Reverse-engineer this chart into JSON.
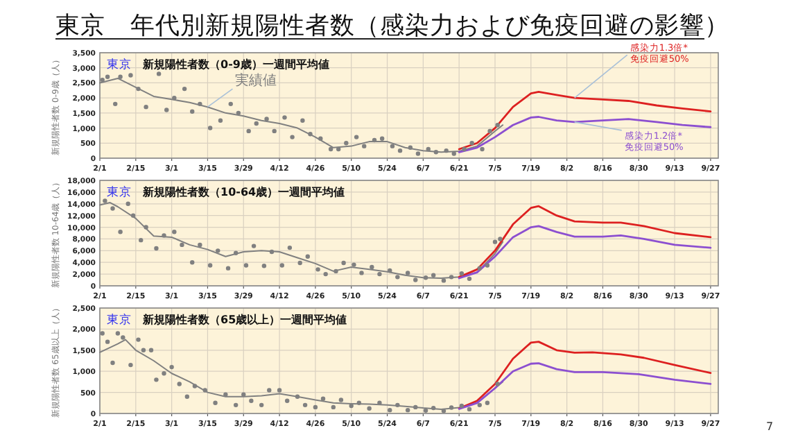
{
  "chart_data": [
    {
      "type": "line",
      "title": "東京　年代別新規陽性者数（感染力および免疫回避の影響）",
      "subtitle": "新規陽性者数（0-9歳）一週間平均値",
      "annotations": [
        "東京"
      ],
      "ylabel": "新規陽性者数 0-9歳（人）",
      "grid": true,
      "legend": false,
      "xlim": [
        "--02-01",
        "--09-30"
      ],
      "ylim": [
        0,
        3500
      ],
      "xticks": [
        {
          "value": "--02-01",
          "label": "2/1"
        },
        {
          "value": "--02-15",
          "label": "2/15"
        },
        {
          "value": "--03-01",
          "label": "3/1"
        },
        {
          "value": "--03-15",
          "label": "3/15"
        },
        {
          "value": "--03-29",
          "label": "3/29"
        },
        {
          "value": "--04-12",
          "label": "4/12"
        },
        {
          "value": "--04-26",
          "label": "4/26"
        },
        {
          "value": "--05-10",
          "label": "5/10"
        },
        {
          "value": "--05-24",
          "label": "5/24"
        },
        {
          "value": "--06-07",
          "label": "6/7"
        },
        {
          "value": "--06-21",
          "label": "6/21"
        },
        {
          "value": "--07-05",
          "label": "7/5"
        },
        {
          "value": "--07-19",
          "label": "7/19"
        },
        {
          "value": "--08-02",
          "label": "8/2"
        },
        {
          "value": "--08-16",
          "label": "8/16"
        },
        {
          "value": "--08-30",
          "label": "8/30"
        },
        {
          "value": "--09-13",
          "label": "9/13"
        },
        {
          "value": "--09-27",
          "label": "9/27"
        }
      ],
      "yticks": [
        {
          "value": 0,
          "label": "0"
        },
        {
          "value": 500,
          "label": "500"
        },
        {
          "value": 1000,
          "label": "1,000"
        },
        {
          "value": 1500,
          "label": "1,500"
        },
        {
          "value": 2000,
          "label": "2,000"
        },
        {
          "value": 2500,
          "label": "2,500"
        },
        {
          "value": 3000,
          "label": "3,000"
        },
        {
          "value": 3500,
          "label": "3,500"
        }
      ],
      "series": [
        {
          "type": "scatter",
          "color": "#808080",
          "x": [
            "--02-02",
            "--02-04",
            "--02-07",
            "--02-09",
            "--02-13",
            "--02-16",
            "--02-19",
            "--02-24",
            "--02-27",
            "--03-02",
            "--03-06",
            "--03-09",
            "--03-12",
            "--03-16",
            "--03-20",
            "--03-24",
            "--03-27",
            "--03-31",
            "--04-03",
            "--04-07",
            "--04-10",
            "--04-14",
            "--04-17",
            "--04-21",
            "--04-24",
            "--04-28",
            "--05-02",
            "--05-05",
            "--05-08",
            "--05-12",
            "--05-15",
            "--05-19",
            "--05-22",
            "--05-26",
            "--05-29",
            "--06-02",
            "--06-05",
            "--06-09",
            "--06-12",
            "--06-16",
            "--06-19",
            "--06-23",
            "--06-26",
            "--06-30",
            "--07-03",
            "--07-06"
          ],
          "values": [
            2600,
            2700,
            1800,
            2700,
            2750,
            2300,
            1700,
            2800,
            1600,
            2000,
            2300,
            1550,
            1800,
            1000,
            1250,
            1800,
            1500,
            900,
            1150,
            1300,
            900,
            1350,
            700,
            1250,
            800,
            650,
            300,
            300,
            500,
            700,
            400,
            600,
            650,
            400,
            250,
            350,
            150,
            300,
            200,
            250,
            150,
            300,
            500,
            300,
            900,
            1100
          ]
        },
        {
          "type": "line",
          "name": "実績値",
          "color": "#808080",
          "x": [
            "--02-01",
            "--02-08",
            "--02-15",
            "--02-22",
            "--03-01",
            "--03-08",
            "--03-15",
            "--03-22",
            "--03-29",
            "--04-05",
            "--04-12",
            "--04-19",
            "--04-26",
            "--05-03",
            "--05-10",
            "--05-17",
            "--05-24",
            "--05-31",
            "--06-07",
            "--06-14",
            "--06-21",
            "--06-28",
            "--07-05",
            "--07-08"
          ],
          "values": [
            2500,
            2650,
            2350,
            2050,
            1950,
            1850,
            1700,
            1500,
            1400,
            1250,
            1150,
            1000,
            700,
            350,
            400,
            550,
            550,
            350,
            250,
            200,
            230,
            400,
            900,
            1100
          ]
        },
        {
          "type": "line",
          "name": "感染力1.3倍* 免疫回避50%",
          "color": "#dd2020",
          "x": [
            "--06-21",
            "--06-28",
            "--07-05",
            "--07-12",
            "--07-19",
            "--07-22",
            "--07-29",
            "--08-05",
            "--08-16",
            "--08-26",
            "--09-06",
            "--09-16",
            "--09-27"
          ],
          "values": [
            300,
            500,
            1000,
            1700,
            2150,
            2200,
            2100,
            2000,
            1950,
            1900,
            1750,
            1650,
            1550
          ]
        },
        {
          "type": "line",
          "name": "感染力1.2倍* 免疫回避50%",
          "color": "#8c4fd0",
          "x": [
            "--06-21",
            "--06-28",
            "--07-05",
            "--07-12",
            "--07-19",
            "--07-22",
            "--07-29",
            "--08-05",
            "--08-16",
            "--08-26",
            "--09-06",
            "--09-16",
            "--09-27"
          ],
          "values": [
            200,
            350,
            700,
            1100,
            1350,
            1370,
            1250,
            1200,
            1250,
            1300,
            1200,
            1100,
            1030
          ]
        }
      ]
    },
    {
      "type": "line",
      "subtitle": "新規陽性者数（10-64歳）一週間平均値",
      "annotations": [
        "東京"
      ],
      "ylabel": "新規陽性者数 10-64歳（人）",
      "grid": true,
      "legend": false,
      "xlim": [
        "--02-01",
        "--09-30"
      ],
      "ylim": [
        0,
        18000
      ],
      "xticks": [
        {
          "value": "--02-01",
          "label": "2/1"
        },
        {
          "value": "--02-15",
          "label": "2/15"
        },
        {
          "value": "--03-01",
          "label": "3/1"
        },
        {
          "value": "--03-15",
          "label": "3/15"
        },
        {
          "value": "--03-29",
          "label": "3/29"
        },
        {
          "value": "--04-12",
          "label": "4/12"
        },
        {
          "value": "--04-26",
          "label": "4/26"
        },
        {
          "value": "--05-10",
          "label": "5/10"
        },
        {
          "value": "--05-24",
          "label": "5/24"
        },
        {
          "value": "--06-07",
          "label": "6/7"
        },
        {
          "value": "--06-21",
          "label": "6/21"
        },
        {
          "value": "--07-05",
          "label": "7/5"
        },
        {
          "value": "--07-19",
          "label": "7/19"
        },
        {
          "value": "--08-02",
          "label": "8/2"
        },
        {
          "value": "--08-16",
          "label": "8/16"
        },
        {
          "value": "--08-30",
          "label": "8/30"
        },
        {
          "value": "--09-13",
          "label": "9/13"
        },
        {
          "value": "--09-27",
          "label": "9/27"
        }
      ],
      "yticks": [
        {
          "value": 0,
          "label": "0"
        },
        {
          "value": 2000,
          "label": "2,000"
        },
        {
          "value": 4000,
          "label": "4,000"
        },
        {
          "value": 6000,
          "label": "6,000"
        },
        {
          "value": 8000,
          "label": "8,000"
        },
        {
          "value": 10000,
          "label": "10,000"
        },
        {
          "value": 12000,
          "label": "12,000"
        },
        {
          "value": 14000,
          "label": "14,000"
        },
        {
          "value": 16000,
          "label": "16,000"
        },
        {
          "value": 18000,
          "label": "18,000"
        }
      ],
      "series": [
        {
          "type": "scatter",
          "color": "#808080",
          "x": [
            "--02-03",
            "--02-06",
            "--02-09",
            "--02-12",
            "--02-14",
            "--02-17",
            "--02-19",
            "--02-23",
            "--02-26",
            "--03-02",
            "--03-05",
            "--03-09",
            "--03-12",
            "--03-16",
            "--03-19",
            "--03-23",
            "--03-26",
            "--03-30",
            "--04-02",
            "--04-06",
            "--04-09",
            "--04-13",
            "--04-16",
            "--04-20",
            "--04-23",
            "--04-27",
            "--04-30",
            "--05-04",
            "--05-07",
            "--05-11",
            "--05-14",
            "--05-18",
            "--05-21",
            "--05-25",
            "--05-28",
            "--06-01",
            "--06-04",
            "--06-08",
            "--06-11",
            "--06-15",
            "--06-18",
            "--06-22",
            "--06-25",
            "--06-29",
            "--07-02",
            "--07-05",
            "--07-07"
          ],
          "values": [
            14500,
            13200,
            9200,
            14000,
            12000,
            7800,
            10000,
            6400,
            8600,
            9200,
            7000,
            4000,
            7000,
            3500,
            6000,
            3000,
            5600,
            3500,
            6800,
            3400,
            5800,
            3500,
            6500,
            3900,
            5000,
            2800,
            2000,
            2500,
            3900,
            3600,
            2200,
            3200,
            2000,
            2600,
            1500,
            2200,
            1000,
            1400,
            1800,
            900,
            1500,
            2100,
            1200,
            3000,
            3500,
            7500,
            8000
          ]
        },
        {
          "type": "line",
          "color": "#808080",
          "x": [
            "--02-01",
            "--02-05",
            "--02-08",
            "--02-15",
            "--02-22",
            "--03-01",
            "--03-08",
            "--03-15",
            "--03-22",
            "--03-29",
            "--04-05",
            "--04-12",
            "--04-19",
            "--04-26",
            "--05-03",
            "--05-10",
            "--05-17",
            "--05-24",
            "--05-31",
            "--06-07",
            "--06-14",
            "--06-21",
            "--06-28",
            "--07-05",
            "--07-08"
          ],
          "values": [
            13800,
            14200,
            13500,
            11500,
            8500,
            8300,
            7000,
            6200,
            5000,
            5800,
            6000,
            5800,
            4800,
            3800,
            2500,
            3200,
            2800,
            2400,
            1800,
            1400,
            1300,
            1500,
            2300,
            5500,
            7500
          ]
        },
        {
          "type": "line",
          "color": "#dd2020",
          "x": [
            "--06-21",
            "--06-28",
            "--07-05",
            "--07-12",
            "--07-19",
            "--07-22",
            "--07-29",
            "--08-05",
            "--08-16",
            "--08-23",
            "--09-01",
            "--09-13",
            "--09-27"
          ],
          "values": [
            1500,
            2800,
            6000,
            10500,
            13300,
            13600,
            12000,
            11000,
            10800,
            10800,
            10200,
            9000,
            8300
          ]
        },
        {
          "type": "line",
          "color": "#8c4fd0",
          "x": [
            "--06-21",
            "--06-28",
            "--07-05",
            "--07-12",
            "--07-19",
            "--07-22",
            "--07-29",
            "--08-05",
            "--08-16",
            "--08-23",
            "--09-01",
            "--09-13",
            "--09-27"
          ],
          "values": [
            1300,
            2300,
            5000,
            8300,
            10000,
            10200,
            9200,
            8400,
            8400,
            8600,
            8000,
            7000,
            6500
          ]
        }
      ]
    },
    {
      "type": "line",
      "subtitle": "新規陽性者数（65歳以上）一週間平均値",
      "annotations": [
        "東京",
        "7"
      ],
      "ylabel": "新規陽性者数 65歳以上（人）",
      "grid": true,
      "legend": false,
      "xlim": [
        "--02-01",
        "--09-30"
      ],
      "ylim": [
        0,
        2500
      ],
      "xticks": [
        {
          "value": "--02-01",
          "label": "2/1"
        },
        {
          "value": "--02-15",
          "label": "2/15"
        },
        {
          "value": "--03-01",
          "label": "3/1"
        },
        {
          "value": "--03-15",
          "label": "3/15"
        },
        {
          "value": "--03-29",
          "label": "3/29"
        },
        {
          "value": "--04-12",
          "label": "4/12"
        },
        {
          "value": "--04-26",
          "label": "4/26"
        },
        {
          "value": "--05-10",
          "label": "5/10"
        },
        {
          "value": "--05-24",
          "label": "5/24"
        },
        {
          "value": "--06-07",
          "label": "6/7"
        },
        {
          "value": "--06-21",
          "label": "6/21"
        },
        {
          "value": "--07-05",
          "label": "7/5"
        },
        {
          "value": "--07-19",
          "label": "7/19"
        },
        {
          "value": "--08-02",
          "label": "8/2"
        },
        {
          "value": "--08-16",
          "label": "8/16"
        },
        {
          "value": "--08-30",
          "label": "8/30"
        },
        {
          "value": "--09-13",
          "label": "9/13"
        },
        {
          "value": "--09-27",
          "label": "9/27"
        }
      ],
      "yticks": [
        {
          "value": 0,
          "label": "0"
        },
        {
          "value": 500,
          "label": "500"
        },
        {
          "value": 1000,
          "label": "1,000"
        },
        {
          "value": 1500,
          "label": "1,500"
        },
        {
          "value": 2000,
          "label": "2,000"
        },
        {
          "value": 2500,
          "label": "2,500"
        }
      ],
      "series": [
        {
          "type": "scatter",
          "color": "#808080",
          "x": [
            "--02-02",
            "--02-04",
            "--02-06",
            "--02-08",
            "--02-10",
            "--02-13",
            "--02-16",
            "--02-18",
            "--02-21",
            "--02-23",
            "--02-26",
            "--03-01",
            "--03-04",
            "--03-07",
            "--03-10",
            "--03-14",
            "--03-18",
            "--03-22",
            "--03-26",
            "--03-29",
            "--04-01",
            "--04-05",
            "--04-08",
            "--04-12",
            "--04-15",
            "--04-19",
            "--04-22",
            "--04-26",
            "--04-29",
            "--05-03",
            "--05-06",
            "--05-10",
            "--05-13",
            "--05-17",
            "--05-21",
            "--05-25",
            "--05-28",
            "--06-01",
            "--06-04",
            "--06-08",
            "--06-11",
            "--06-15",
            "--06-18",
            "--06-22",
            "--06-25",
            "--06-29",
            "--07-02",
            "--07-06"
          ],
          "values": [
            1900,
            1700,
            1200,
            1900,
            1800,
            1150,
            1750,
            1500,
            1500,
            800,
            950,
            1100,
            700,
            400,
            650,
            550,
            250,
            450,
            200,
            450,
            300,
            200,
            550,
            550,
            300,
            400,
            200,
            150,
            350,
            150,
            320,
            180,
            250,
            120,
            250,
            80,
            200,
            80,
            150,
            70,
            130,
            60,
            140,
            180,
            100,
            200,
            250,
            700
          ]
        },
        {
          "type": "line",
          "color": "#808080",
          "x": [
            "--02-01",
            "--02-08",
            "--02-11",
            "--02-15",
            "--02-22",
            "--03-01",
            "--03-08",
            "--03-15",
            "--03-22",
            "--03-29",
            "--04-05",
            "--04-12",
            "--04-19",
            "--04-26",
            "--05-03",
            "--05-10",
            "--05-17",
            "--05-24",
            "--05-31",
            "--06-07",
            "--06-14",
            "--06-21",
            "--06-28",
            "--07-05",
            "--07-08"
          ],
          "values": [
            1450,
            1650,
            1750,
            1500,
            1250,
            950,
            750,
            500,
            400,
            400,
            420,
            470,
            400,
            320,
            250,
            230,
            220,
            200,
            170,
            130,
            100,
            140,
            250,
            600,
            750
          ]
        },
        {
          "type": "line",
          "color": "#dd2020",
          "x": [
            "--06-21",
            "--06-28",
            "--07-05",
            "--07-12",
            "--07-19",
            "--07-22",
            "--07-29",
            "--08-05",
            "--08-12",
            "--08-23",
            "--09-01",
            "--09-13",
            "--09-27"
          ],
          "values": [
            120,
            300,
            700,
            1300,
            1680,
            1700,
            1500,
            1440,
            1450,
            1400,
            1320,
            1150,
            960
          ]
        },
        {
          "type": "line",
          "color": "#8c4fd0",
          "x": [
            "--06-21",
            "--06-28",
            "--07-05",
            "--07-12",
            "--07-19",
            "--07-22",
            "--07-29",
            "--08-05",
            "--08-16",
            "--08-30",
            "--09-13",
            "--09-27"
          ],
          "values": [
            110,
            250,
            600,
            1000,
            1180,
            1190,
            1050,
            980,
            980,
            930,
            800,
            700
          ]
        }
      ]
    }
  ]
}
